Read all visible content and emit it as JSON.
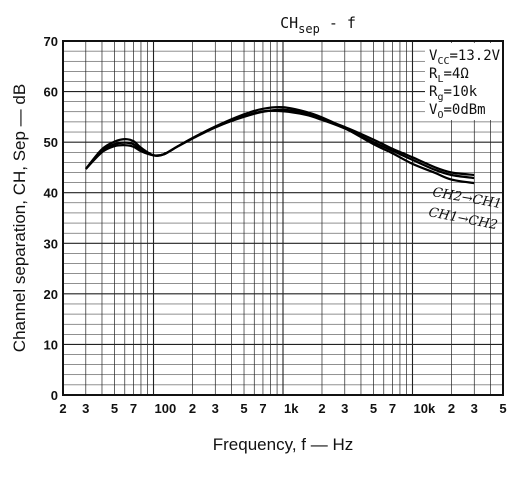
{
  "chart_data": {
    "type": "line",
    "title": "CHsep - f",
    "title_parts": {
      "main": "CH",
      "sub": "sep",
      "rest": " - f"
    },
    "xlabel": "Frequency, f — Hz",
    "ylabel": "Channel separation, CH, Sep — dB",
    "x_scale": "log",
    "xlim": [
      20,
      50000
    ],
    "ylim": [
      0,
      70
    ],
    "grid": true,
    "y_ticks": [
      "0",
      "10",
      "20",
      "30",
      "40",
      "50",
      "60",
      "70"
    ],
    "x_ticks": [
      {
        "x": 20,
        "label": "2"
      },
      {
        "x": 30,
        "label": "3"
      },
      {
        "x": 50,
        "label": "5"
      },
      {
        "x": 70,
        "label": "7"
      },
      {
        "x": 100,
        "label": "100"
      },
      {
        "x": 200,
        "label": "2"
      },
      {
        "x": 300,
        "label": "3"
      },
      {
        "x": 500,
        "label": "5"
      },
      {
        "x": 700,
        "label": "7"
      },
      {
        "x": 1000,
        "label": "1k"
      },
      {
        "x": 2000,
        "label": "2"
      },
      {
        "x": 3000,
        "label": "3"
      },
      {
        "x": 5000,
        "label": "5"
      },
      {
        "x": 7000,
        "label": "7"
      },
      {
        "x": 10000,
        "label": "10k"
      },
      {
        "x": 20000,
        "label": "2"
      },
      {
        "x": 30000,
        "label": "3"
      },
      {
        "x": 50000,
        "label": "5"
      }
    ],
    "conditions": [
      {
        "main": "V",
        "sub": "CC",
        "rest": "=13.2V"
      },
      {
        "main": "R",
        "sub": "L",
        "rest": "=4Ω"
      },
      {
        "main": "R",
        "sub": "g",
        "rest": "=10k"
      },
      {
        "main": "V",
        "sub": "O",
        "rest": "=0dBm"
      }
    ],
    "series": [
      {
        "name": "CH2→CH1",
        "x": [
          30,
          40,
          50,
          60,
          70,
          80,
          100,
          120,
          150,
          200,
          300,
          500,
          700,
          1000,
          1500,
          2000,
          3000,
          5000,
          7000,
          10000,
          15000,
          20000,
          30000
        ],
        "y": [
          44.7,
          48.3,
          49.6,
          49.9,
          49.6,
          48.5,
          47.4,
          47.6,
          49.0,
          50.8,
          53.0,
          55.0,
          56.0,
          56.4,
          55.7,
          54.6,
          53.0,
          50.5,
          48.7,
          47.0,
          45.0,
          44.0,
          43.5
        ]
      },
      {
        "name": "CH1→CH2",
        "x": [
          30,
          40,
          50,
          60,
          70,
          80,
          100,
          120,
          150,
          200,
          300,
          500,
          700,
          1000,
          1500,
          2000,
          3000,
          5000,
          7000,
          10000,
          15000,
          20000,
          30000
        ],
        "y": [
          44.7,
          48.6,
          50.1,
          50.6,
          50.2,
          48.9,
          47.4,
          47.6,
          49.0,
          50.8,
          53.1,
          55.5,
          56.6,
          56.9,
          56.0,
          54.9,
          52.8,
          49.6,
          47.8,
          45.7,
          43.9,
          42.6,
          41.9
        ]
      },
      {
        "name": "",
        "x": [
          30,
          40,
          50,
          60,
          70,
          80,
          100,
          120,
          150,
          200,
          300,
          500,
          700,
          1000,
          1500,
          2000,
          3000,
          5000,
          7000,
          10000,
          15000,
          20000,
          30000
        ],
        "y": [
          44.7,
          48.0,
          49.2,
          49.4,
          49.1,
          48.2,
          47.4,
          47.6,
          49.0,
          50.7,
          52.9,
          55.1,
          56.1,
          56.1,
          55.4,
          54.4,
          52.7,
          50.0,
          48.3,
          46.5,
          44.5,
          43.5,
          42.9
        ]
      }
    ]
  }
}
